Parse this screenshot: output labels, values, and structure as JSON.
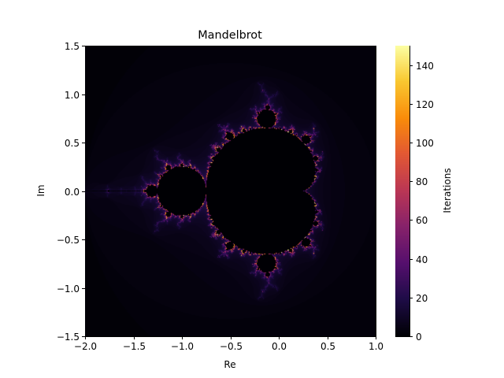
{
  "chart_data": {
    "type": "heatmap",
    "title": "Mandelbrot",
    "xlabel": "Re",
    "ylabel": "Im",
    "xlim": [
      -2.0,
      1.0
    ],
    "ylim": [
      -1.5,
      1.5
    ],
    "x_ticks": [
      -2.0,
      -1.5,
      -1.0,
      -0.5,
      0.0,
      0.5,
      1.0
    ],
    "x_tick_labels": [
      "−2.0",
      "−1.5",
      "−1.0",
      "−0.5",
      "0.0",
      "0.5",
      "1.0"
    ],
    "y_ticks": [
      -1.5,
      -1.0,
      -0.5,
      0.0,
      0.5,
      1.0,
      1.5
    ],
    "y_tick_labels": [
      "−1.5",
      "−1.0",
      "−0.5",
      "0.0",
      "0.5",
      "1.0",
      "1.5"
    ],
    "max_iterations": 150,
    "colormap": "inferno",
    "colorbar": {
      "label": "Iterations",
      "range": [
        0,
        150
      ],
      "ticks": [
        0,
        20,
        40,
        60,
        80,
        100,
        120,
        140
      ],
      "tick_labels": [
        "0",
        "20",
        "40",
        "60",
        "80",
        "100",
        "120",
        "140"
      ]
    },
    "grid": false
  }
}
